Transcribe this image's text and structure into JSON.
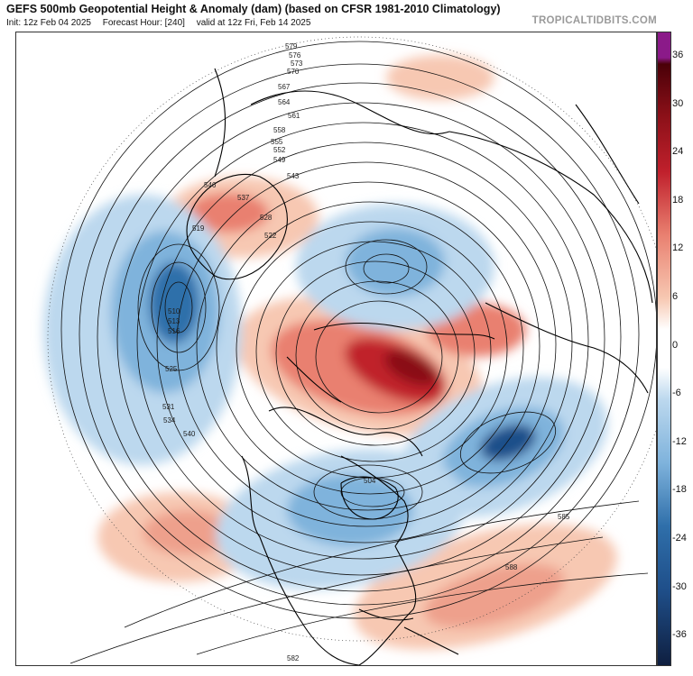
{
  "header": {
    "title": "GEFS 500mb Geopotential Height & Anomaly (dam) (based on CFSR 1981-2010 Climatology)",
    "init": "Init: 12z Feb 04 2025",
    "forecast_hour": "Forecast Hour: [240]",
    "valid": "valid at 12z Fri, Feb 14 2025",
    "brand": "TROPICALTIDBITS.COM"
  },
  "colorbar": {
    "ticks": [
      "36",
      "30",
      "24",
      "18",
      "12",
      "6",
      "0",
      "-6",
      "-12",
      "-18",
      "-24",
      "-30",
      "-36"
    ],
    "colors": {
      "purple": "#8b1a89",
      "dark_red": "#6a0010",
      "red": "#c0202c",
      "light_red": "#e98070",
      "pale_red": "#f7c8b2",
      "white": "#ffffff",
      "pale_blue": "#bcd8ee",
      "light_blue": "#7fb3dc",
      "blue": "#2f6faa",
      "dark_blue": "#0f2f5f"
    }
  },
  "contour_labels": [
    "579",
    "576",
    "573",
    "570",
    "567",
    "564",
    "561",
    "558",
    "555",
    "552",
    "549",
    "546",
    "543",
    "540",
    "537",
    "534",
    "531",
    "528",
    "525",
    "522",
    "519",
    "516",
    "513",
    "510",
    "504",
    "585",
    "588",
    "582"
  ]
}
